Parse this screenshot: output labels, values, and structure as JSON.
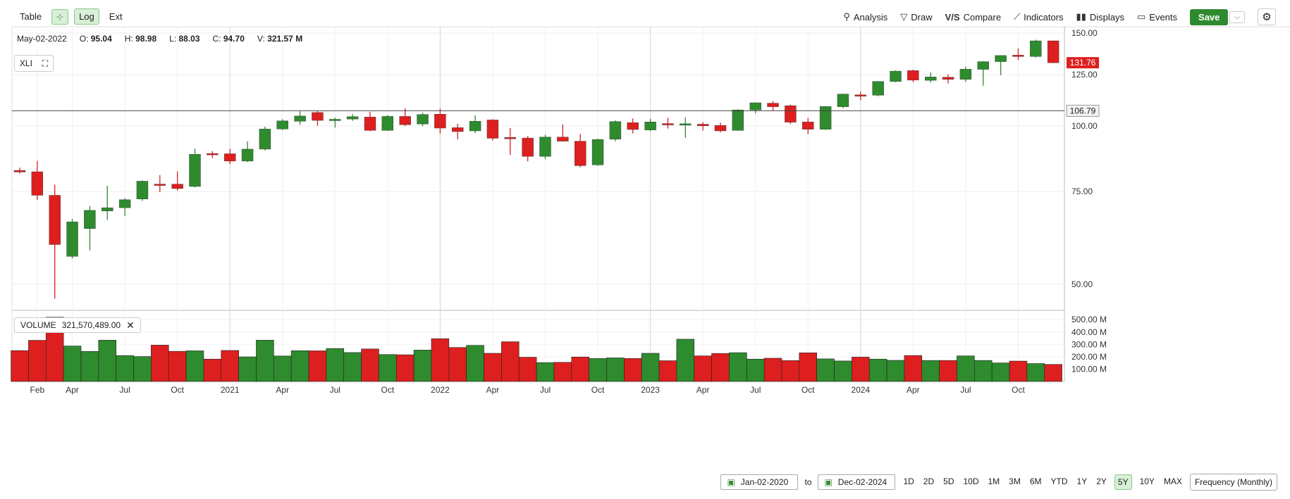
{
  "toolbar": {
    "left": {
      "table": "Table",
      "log": "Log",
      "ext": "Ext"
    },
    "right": {
      "analysis": "Analysis",
      "draw": "Draw",
      "compare": "Compare",
      "indicators": "Indicators",
      "displays": "Displays",
      "events": "Events",
      "save": "Save"
    }
  },
  "ohlc": {
    "date": "May-02-2022",
    "o_label": "O:",
    "o": "95.04",
    "h_label": "H:",
    "h": "98.98",
    "l_label": "L:",
    "l": "88.03",
    "c_label": "C:",
    "c": "94.70",
    "v_label": "V:",
    "v": "321.57 M"
  },
  "symbol": "XLI",
  "volume_box": {
    "label": "VOLUME",
    "value": "321,570,489.00"
  },
  "price_tags": {
    "last": "131.76",
    "crosshair": "106.79"
  },
  "bottom": {
    "from": "Jan-02-2020",
    "to_label": "to",
    "to": "Dec-02-2024",
    "ranges": [
      "1D",
      "2D",
      "5D",
      "10D",
      "1M",
      "3M",
      "6M",
      "YTD",
      "1Y",
      "2Y",
      "5Y",
      "10Y",
      "MAX"
    ],
    "active_range": "5Y",
    "frequency": "Frequency (Monthly)"
  },
  "colors": {
    "up": "#2e8b2e",
    "down": "#dd1f1f"
  },
  "chart_data": {
    "type": "candlestick",
    "scale": "log",
    "price_ticks": [
      "150.00",
      "125.00",
      "100.00",
      "75.00",
      "50.00"
    ],
    "volume_ticks": [
      "500.00 M",
      "400.00 M",
      "300.00 M",
      "200.00 M",
      "100.00 M"
    ],
    "x_labels": [
      "Feb",
      "Apr",
      "Jul",
      "Oct",
      "2021",
      "Apr",
      "Jul",
      "Oct",
      "2022",
      "Apr",
      "Jul",
      "Oct",
      "2023",
      "Apr",
      "Jul",
      "Oct",
      "2024",
      "Apr",
      "Jul",
      "Oct"
    ],
    "start": "2020-01",
    "candles": [
      {
        "d": "2020-01",
        "o": 82.3,
        "h": 83.3,
        "l": 81.2,
        "c": 81.7,
        "v": 250
      },
      {
        "d": "2020-02",
        "o": 81.8,
        "h": 85.8,
        "l": 72.3,
        "c": 73.8,
        "v": 333
      },
      {
        "d": "2020-03",
        "o": 73.8,
        "h": 77.3,
        "l": 47.0,
        "c": 59.5,
        "v": 520
      },
      {
        "d": "2020-04",
        "o": 56.5,
        "h": 66.6,
        "l": 56.0,
        "c": 65.7,
        "v": 287
      },
      {
        "d": "2020-05",
        "o": 63.8,
        "h": 70.4,
        "l": 58.0,
        "c": 69.1,
        "v": 243
      },
      {
        "d": "2020-06",
        "o": 68.9,
        "h": 76.9,
        "l": 66.3,
        "c": 69.9,
        "v": 334
      },
      {
        "d": "2020-07",
        "o": 69.9,
        "h": 72.9,
        "l": 67.4,
        "c": 72.4,
        "v": 210
      },
      {
        "d": "2020-08",
        "o": 72.6,
        "h": 78.8,
        "l": 72.0,
        "c": 78.5,
        "v": 202
      },
      {
        "d": "2020-09",
        "o": 77.5,
        "h": 80.6,
        "l": 74.8,
        "c": 77.3,
        "v": 294
      },
      {
        "d": "2020-10",
        "o": 77.5,
        "h": 81.9,
        "l": 75.3,
        "c": 76.0,
        "v": 244
      },
      {
        "d": "2020-11",
        "o": 76.7,
        "h": 90.5,
        "l": 76.4,
        "c": 88.3,
        "v": 248
      },
      {
        "d": "2020-12",
        "o": 88.6,
        "h": 89.5,
        "l": 86.9,
        "c": 88.5,
        "v": 181
      },
      {
        "d": "2021-01",
        "o": 88.5,
        "h": 90.4,
        "l": 84.6,
        "c": 85.7,
        "v": 251
      },
      {
        "d": "2021-02",
        "o": 85.7,
        "h": 93.4,
        "l": 85.3,
        "c": 90.3,
        "v": 199
      },
      {
        "d": "2021-03",
        "o": 90.3,
        "h": 99.6,
        "l": 89.8,
        "c": 98.6,
        "v": 334
      },
      {
        "d": "2021-04",
        "o": 98.6,
        "h": 102.9,
        "l": 98.1,
        "c": 102.2,
        "v": 206
      },
      {
        "d": "2021-05",
        "o": 102.0,
        "h": 106.5,
        "l": 100.5,
        "c": 104.4,
        "v": 249
      },
      {
        "d": "2021-06",
        "o": 106.0,
        "h": 106.6,
        "l": 100.0,
        "c": 102.4,
        "v": 248
      },
      {
        "d": "2021-07",
        "o": 102.4,
        "h": 103.7,
        "l": 99.2,
        "c": 102.9,
        "v": 267
      },
      {
        "d": "2021-08",
        "o": 103.0,
        "h": 105.3,
        "l": 102.2,
        "c": 104.1,
        "v": 234
      },
      {
        "d": "2021-09",
        "o": 103.9,
        "h": 106.3,
        "l": 97.7,
        "c": 98.0,
        "v": 263
      },
      {
        "d": "2021-10",
        "o": 98.0,
        "h": 104.9,
        "l": 97.8,
        "c": 104.2,
        "v": 218
      },
      {
        "d": "2021-11",
        "o": 104.2,
        "h": 108.0,
        "l": 99.8,
        "c": 100.5,
        "v": 216
      },
      {
        "d": "2021-12",
        "o": 100.8,
        "h": 106.0,
        "l": 99.8,
        "c": 105.1,
        "v": 254
      },
      {
        "d": "2022-01",
        "o": 105.2,
        "h": 107.8,
        "l": 96.7,
        "c": 99.0,
        "v": 346
      },
      {
        "d": "2022-02",
        "o": 99.2,
        "h": 100.9,
        "l": 94.3,
        "c": 97.5,
        "v": 275
      },
      {
        "d": "2022-03",
        "o": 97.8,
        "h": 104.7,
        "l": 96.8,
        "c": 102.0,
        "v": 292
      },
      {
        "d": "2022-04",
        "o": 102.6,
        "h": 102.9,
        "l": 93.8,
        "c": 94.7,
        "v": 228
      },
      {
        "d": "2022-05",
        "o": 95.04,
        "h": 98.98,
        "l": 88.03,
        "c": 94.7,
        "v": 321.57
      },
      {
        "d": "2022-06",
        "o": 94.8,
        "h": 95.6,
        "l": 85.6,
        "c": 87.5,
        "v": 196
      },
      {
        "d": "2022-07",
        "o": 87.5,
        "h": 96.2,
        "l": 86.4,
        "c": 95.2,
        "v": 153
      },
      {
        "d": "2022-08",
        "o": 95.2,
        "h": 100.6,
        "l": 93.4,
        "c": 93.5,
        "v": 155
      },
      {
        "d": "2022-09",
        "o": 93.5,
        "h": 96.5,
        "l": 83.4,
        "c": 84.0,
        "v": 198
      },
      {
        "d": "2022-10",
        "o": 84.3,
        "h": 94.6,
        "l": 83.9,
        "c": 94.2,
        "v": 186
      },
      {
        "d": "2022-11",
        "o": 94.3,
        "h": 102.4,
        "l": 93.5,
        "c": 101.9,
        "v": 191
      },
      {
        "d": "2022-12",
        "o": 101.4,
        "h": 103.3,
        "l": 96.7,
        "c": 98.4,
        "v": 186
      },
      {
        "d": "2023-01",
        "o": 98.2,
        "h": 103.1,
        "l": 97.7,
        "c": 101.7,
        "v": 228
      },
      {
        "d": "2023-02",
        "o": 101.0,
        "h": 103.6,
        "l": 98.8,
        "c": 100.7,
        "v": 168
      },
      {
        "d": "2023-03",
        "o": 100.7,
        "h": 103.7,
        "l": 94.8,
        "c": 100.9,
        "v": 342
      },
      {
        "d": "2023-04",
        "o": 100.7,
        "h": 101.6,
        "l": 98.0,
        "c": 100.0,
        "v": 207
      },
      {
        "d": "2023-05",
        "o": 100.2,
        "h": 101.4,
        "l": 97.2,
        "c": 97.8,
        "v": 227
      },
      {
        "d": "2023-06",
        "o": 98.0,
        "h": 107.5,
        "l": 97.9,
        "c": 107.2,
        "v": 233
      },
      {
        "d": "2023-07",
        "o": 107.2,
        "h": 110.8,
        "l": 105.6,
        "c": 110.6,
        "v": 181
      },
      {
        "d": "2023-08",
        "o": 110.4,
        "h": 111.3,
        "l": 106.8,
        "c": 108.7,
        "v": 188
      },
      {
        "d": "2023-09",
        "o": 109.2,
        "h": 109.7,
        "l": 100.8,
        "c": 101.6,
        "v": 169
      },
      {
        "d": "2023-10",
        "o": 101.7,
        "h": 103.5,
        "l": 96.4,
        "c": 98.5,
        "v": 232
      },
      {
        "d": "2023-11",
        "o": 98.5,
        "h": 108.8,
        "l": 98.3,
        "c": 108.8,
        "v": 183
      },
      {
        "d": "2023-12",
        "o": 108.7,
        "h": 115.1,
        "l": 108.0,
        "c": 114.9,
        "v": 166
      },
      {
        "d": "2024-01",
        "o": 114.5,
        "h": 116.1,
        "l": 111.8,
        "c": 114.3,
        "v": 197
      },
      {
        "d": "2024-02",
        "o": 114.3,
        "h": 121.6,
        "l": 113.8,
        "c": 121.4,
        "v": 181
      },
      {
        "d": "2024-03",
        "o": 121.4,
        "h": 127.4,
        "l": 120.9,
        "c": 127.0,
        "v": 171
      },
      {
        "d": "2024-04",
        "o": 127.3,
        "h": 127.8,
        "l": 121.0,
        "c": 122.1,
        "v": 210
      },
      {
        "d": "2024-05",
        "o": 122.0,
        "h": 126.3,
        "l": 120.8,
        "c": 123.8,
        "v": 170
      },
      {
        "d": "2024-06",
        "o": 123.7,
        "h": 125.2,
        "l": 120.3,
        "c": 122.5,
        "v": 170
      },
      {
        "d": "2024-07",
        "o": 122.5,
        "h": 129.6,
        "l": 121.2,
        "c": 128.1,
        "v": 207
      },
      {
        "d": "2024-08",
        "o": 128.0,
        "h": 132.6,
        "l": 119.2,
        "c": 132.4,
        "v": 170
      },
      {
        "d": "2024-09",
        "o": 132.4,
        "h": 136.0,
        "l": 124.7,
        "c": 136.0,
        "v": 150
      },
      {
        "d": "2024-10",
        "o": 136.2,
        "h": 140.4,
        "l": 133.3,
        "c": 135.4,
        "v": 165
      },
      {
        "d": "2024-11",
        "o": 135.4,
        "h": 145.7,
        "l": 134.8,
        "c": 145.0,
        "v": 145
      },
      {
        "d": "2024-12",
        "o": 145.0,
        "h": 145.2,
        "l": 131.5,
        "c": 131.76,
        "v": 138
      }
    ],
    "crosshair_price": 106.79
  }
}
